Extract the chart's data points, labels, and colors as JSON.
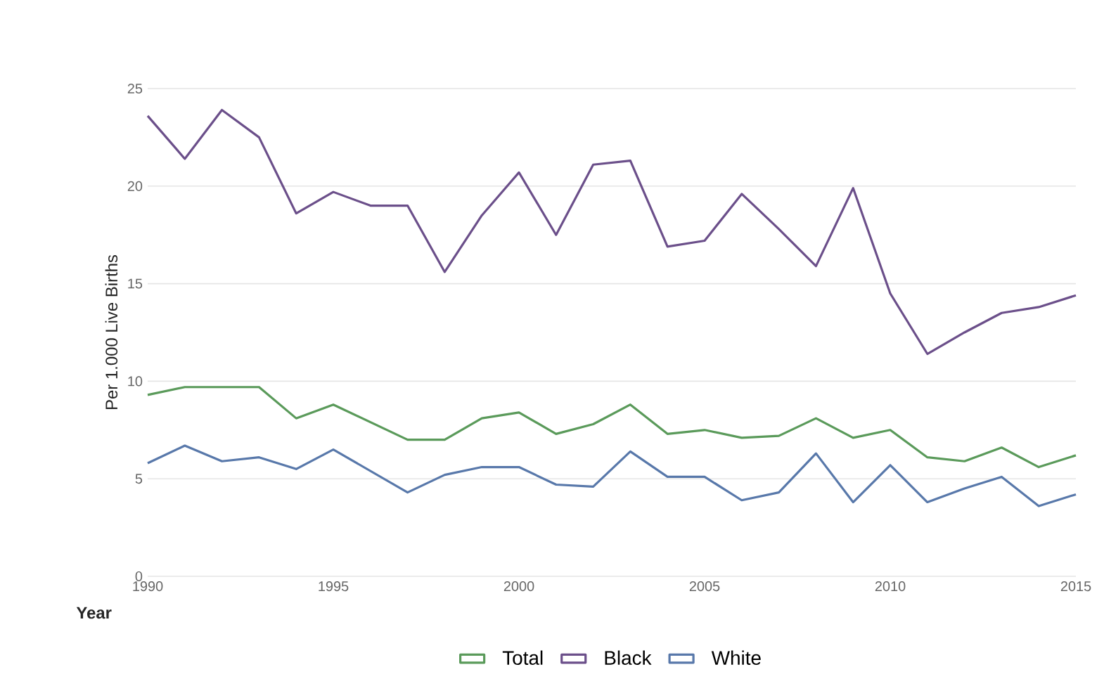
{
  "chart_data": {
    "type": "line",
    "ylabel": "Per 1.000 Live Births",
    "xlabel": "Year",
    "x": [
      1990,
      1991,
      1992,
      1993,
      1994,
      1995,
      1996,
      1997,
      1998,
      1999,
      2000,
      2001,
      2002,
      2003,
      2004,
      2005,
      2006,
      2007,
      2008,
      2009,
      2010,
      2011,
      2012,
      2013,
      2014,
      2015
    ],
    "series": [
      {
        "name": "Total",
        "color": "#5a9a5a",
        "values": [
          9.3,
          9.7,
          9.7,
          9.7,
          8.1,
          8.8,
          7.9,
          7.0,
          7.0,
          8.1,
          8.4,
          7.3,
          7.8,
          8.8,
          7.3,
          7.5,
          7.1,
          7.2,
          8.1,
          7.1,
          7.5,
          6.1,
          5.9,
          6.6,
          5.6,
          6.2
        ]
      },
      {
        "name": "Black",
        "color": "#6b4f8a",
        "values": [
          23.6,
          21.4,
          23.9,
          22.5,
          18.6,
          19.7,
          19.0,
          19.0,
          15.6,
          18.5,
          20.7,
          17.5,
          21.1,
          21.3,
          16.9,
          17.2,
          19.6,
          17.8,
          15.9,
          19.9,
          14.5,
          11.4,
          12.5,
          13.5,
          13.8,
          14.4
        ]
      },
      {
        "name": "White",
        "color": "#5878aa",
        "values": [
          5.8,
          6.7,
          5.9,
          6.1,
          5.5,
          6.5,
          5.4,
          4.3,
          5.2,
          5.6,
          5.6,
          4.7,
          4.6,
          6.4,
          5.1,
          5.1,
          3.9,
          4.3,
          6.3,
          3.8,
          5.7,
          3.8,
          4.5,
          5.1,
          3.6,
          4.2
        ]
      }
    ],
    "xlim": [
      1990,
      2015
    ],
    "xticks": [
      1990,
      1995,
      2000,
      2005,
      2010,
      2015
    ],
    "ylim": [
      0,
      25
    ],
    "yticks": [
      0,
      5,
      10,
      15,
      20,
      25
    ],
    "grid": "y",
    "legend": "bottom",
    "marker": "none",
    "line_style": "solid"
  }
}
